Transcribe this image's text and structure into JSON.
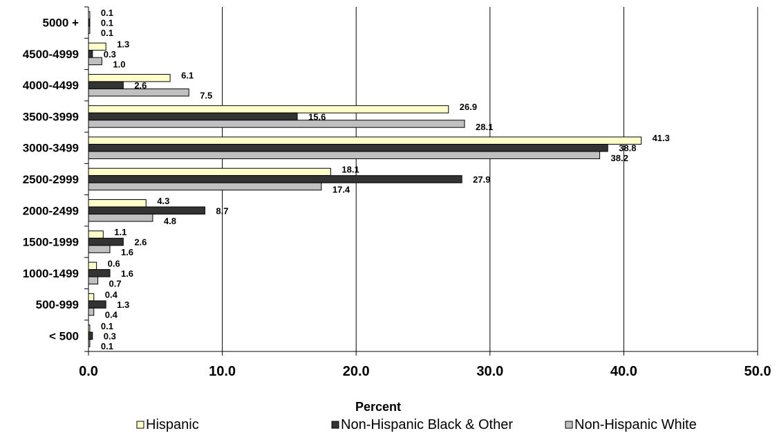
{
  "chart_data": {
    "type": "bar",
    "orientation": "horizontal",
    "categories": [
      "5000 +",
      "4500-4999",
      "4000-4499",
      "3500-3999",
      "3000-3499",
      "2500-2999",
      "2000-2499",
      "1500-1999",
      "1000-1499",
      "500-999",
      "< 500"
    ],
    "series": [
      {
        "name": "Hispanic",
        "color": "#ffffcc",
        "values": [
          0.1,
          1.3,
          6.1,
          26.9,
          41.3,
          18.1,
          4.3,
          1.1,
          0.6,
          0.4,
          0.1
        ]
      },
      {
        "name": "Non-Hispanic Black & Other",
        "color": "#333333",
        "values": [
          0.1,
          0.3,
          2.6,
          15.6,
          38.8,
          27.9,
          8.7,
          2.6,
          1.6,
          1.3,
          0.3
        ]
      },
      {
        "name": "Non-Hispanic White",
        "color": "#c0c0c0",
        "values": [
          0.1,
          1.0,
          7.5,
          28.1,
          38.2,
          17.4,
          4.8,
          1.6,
          0.7,
          0.4,
          0.1
        ]
      }
    ],
    "xlabel": "Percent",
    "xlim": [
      0,
      50
    ],
    "xticks": [
      0,
      10,
      20,
      30,
      40,
      50
    ],
    "grid": true,
    "legend_position": "bottom"
  }
}
